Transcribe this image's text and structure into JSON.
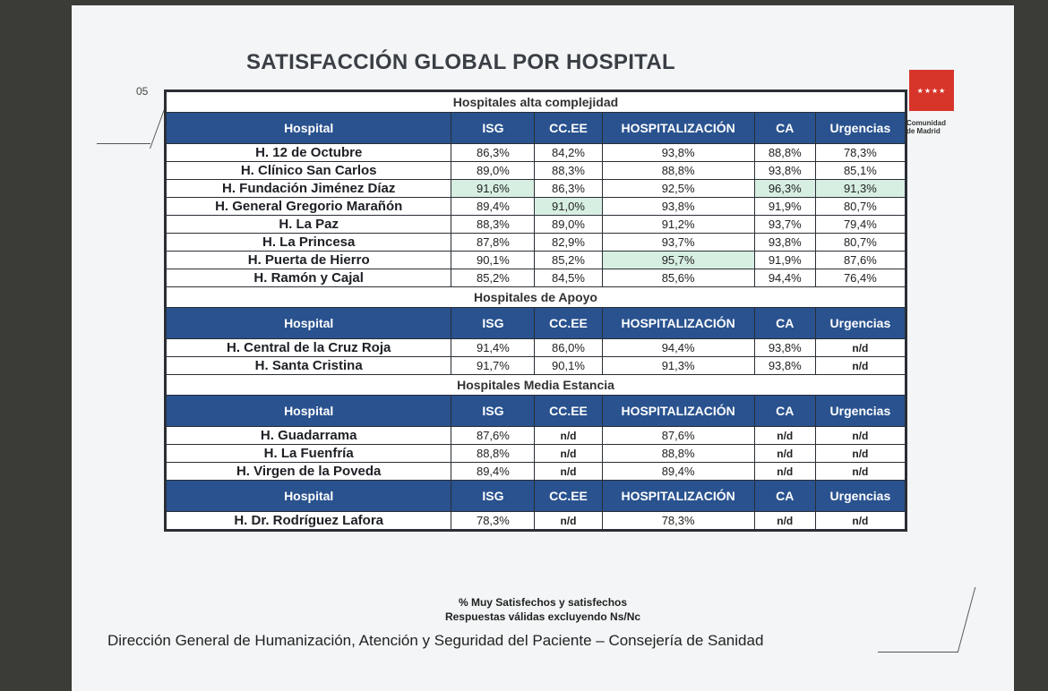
{
  "slide": {
    "page_number": "05",
    "title": "SATISFACCIÓN GLOBAL POR HOSPITAL",
    "logo_stars": "★★★★",
    "logo_text_1": "Comunidad",
    "logo_text_2": "de Madrid",
    "footnote_1": "% Muy Satisfechos y satisfechos",
    "footnote_2": "Respuestas válidas excluyendo Ns/Nc",
    "credit": "Dirección General de Humanización, Atención y Seguridad del Paciente – Consejería de Sanidad"
  },
  "colors": {
    "header_blue": "#29528f",
    "highlight_green": "#d7efe2"
  },
  "columns": [
    "Hospital",
    "ISG",
    "CC.EE",
    "HOSPITALIZACIÓN",
    "CA",
    "Urgencias"
  ],
  "sections": [
    {
      "title": "Hospitales alta complejidad",
      "rows": [
        {
          "cells": [
            "H. 12 de Octubre",
            "86,3%",
            "84,2%",
            "93,8%",
            "88,8%",
            "78,3%"
          ],
          "highlight": []
        },
        {
          "cells": [
            "H. Clínico San Carlos",
            "89,0%",
            "88,3%",
            "88,8%",
            "93,8%",
            "85,1%"
          ],
          "highlight": []
        },
        {
          "cells": [
            "H. Fundación Jiménez Díaz",
            "91,6%",
            "86,3%",
            "92,5%",
            "96,3%",
            "91,3%"
          ],
          "highlight": [
            1,
            4,
            5
          ]
        },
        {
          "cells": [
            "H. General Gregorio Marañón",
            "89,4%",
            "91,0%",
            "93,8%",
            "91,9%",
            "80,7%"
          ],
          "highlight": [
            2
          ]
        },
        {
          "cells": [
            "H. La Paz",
            "88,3%",
            "89,0%",
            "91,2%",
            "93,7%",
            "79,4%"
          ],
          "highlight": []
        },
        {
          "cells": [
            "H. La Princesa",
            "87,8%",
            "82,9%",
            "93,7%",
            "93,8%",
            "80,7%"
          ],
          "highlight": []
        },
        {
          "cells": [
            "H. Puerta de Hierro",
            "90,1%",
            "85,2%",
            "95,7%",
            "91,9%",
            "87,6%"
          ],
          "highlight": [
            3
          ]
        },
        {
          "cells": [
            "H. Ramón y Cajal",
            "85,2%",
            "84,5%",
            "85,6%",
            "94,4%",
            "76,4%"
          ],
          "highlight": []
        }
      ]
    },
    {
      "title": "Hospitales de Apoyo",
      "rows": [
        {
          "cells": [
            "H. Central de la Cruz Roja",
            "91,4%",
            "86,0%",
            "94,4%",
            "93,8%",
            "n/d"
          ],
          "highlight": []
        },
        {
          "cells": [
            "H. Santa Cristina",
            "91,7%",
            "90,1%",
            "91,3%",
            "93,8%",
            "n/d"
          ],
          "highlight": []
        }
      ]
    },
    {
      "title": "Hospitales Media Estancia",
      "rows": [
        {
          "cells": [
            "H. Guadarrama",
            "87,6%",
            "n/d",
            "87,6%",
            "n/d",
            "n/d"
          ],
          "highlight": []
        },
        {
          "cells": [
            "H. La Fuenfría",
            "88,8%",
            "n/d",
            "88,8%",
            "n/d",
            "n/d"
          ],
          "highlight": []
        },
        {
          "cells": [
            "H. Virgen de la Poveda",
            "89,4%",
            "n/d",
            "89,4%",
            "n/d",
            "n/d"
          ],
          "highlight": []
        }
      ]
    },
    {
      "title": "",
      "rows": [
        {
          "cells": [
            "H. Dr. Rodríguez Lafora",
            "78,3%",
            "n/d",
            "78,3%",
            "n/d",
            "n/d"
          ],
          "highlight": []
        }
      ]
    }
  ]
}
